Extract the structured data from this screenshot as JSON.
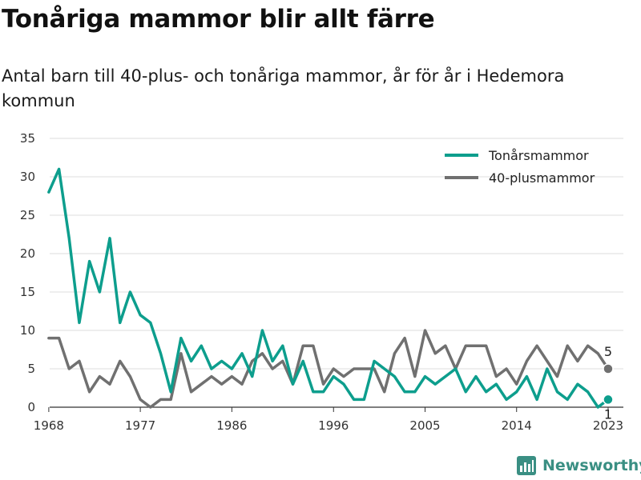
{
  "brand": {
    "name": "Newsworthy"
  },
  "chart_data": {
    "type": "line",
    "title": "Tonåriga mammor blir allt färre",
    "subtitle": "Antal barn till 40-plus- och tonåriga mammor, år för år i Hedemora kommun",
    "x": [
      1968,
      1969,
      1970,
      1971,
      1972,
      1973,
      1974,
      1975,
      1976,
      1977,
      1978,
      1979,
      1980,
      1981,
      1982,
      1983,
      1984,
      1985,
      1986,
      1987,
      1988,
      1989,
      1990,
      1991,
      1992,
      1993,
      1994,
      1995,
      1996,
      1997,
      1998,
      1999,
      2000,
      2001,
      2002,
      2003,
      2004,
      2005,
      2006,
      2007,
      2008,
      2009,
      2010,
      2011,
      2012,
      2013,
      2014,
      2015,
      2016,
      2017,
      2018,
      2019,
      2020,
      2021,
      2022,
      2023
    ],
    "xticks": [
      1968,
      1977,
      1986,
      1996,
      2005,
      2014,
      2023
    ],
    "xtick_labels": [
      "1968",
      "1977",
      "1986",
      "1996",
      "2005",
      "2014",
      "2023"
    ],
    "xlim": [
      1967.3,
      2024.5
    ],
    "ylim": [
      0,
      35
    ],
    "yticks": [
      0,
      5,
      10,
      15,
      20,
      25,
      30,
      35
    ],
    "ytick_labels": [
      "0",
      "5",
      "10",
      "15",
      "20",
      "25",
      "30",
      "35"
    ],
    "grid": true,
    "legend_position": "top-right",
    "series": [
      {
        "name": "Tonårsmammor",
        "color": "#0d9e8d",
        "end_label": "1",
        "values": [
          28,
          31,
          22,
          11,
          19,
          15,
          22,
          11,
          15,
          12,
          11,
          7,
          2,
          9,
          6,
          8,
          5,
          6,
          5,
          7,
          4,
          10,
          6,
          8,
          3,
          6,
          2,
          2,
          4,
          3,
          1,
          1,
          6,
          5,
          4,
          2,
          2,
          4,
          3,
          4,
          5,
          2,
          4,
          2,
          3,
          1,
          2,
          4,
          1,
          5,
          2,
          1,
          3,
          2,
          0,
          1
        ]
      },
      {
        "name": "40-plusmammor",
        "color": "#707070",
        "end_label": "5",
        "values": [
          9,
          9,
          5,
          6,
          2,
          4,
          3,
          6,
          4,
          1,
          0,
          1,
          1,
          7,
          2,
          3,
          4,
          3,
          4,
          3,
          6,
          7,
          5,
          6,
          3,
          8,
          8,
          3,
          5,
          4,
          5,
          5,
          5,
          2,
          7,
          9,
          4,
          10,
          7,
          8,
          5,
          8,
          8,
          8,
          4,
          5,
          3,
          6,
          8,
          6,
          4,
          8,
          6,
          8,
          7,
          5
        ]
      }
    ]
  }
}
